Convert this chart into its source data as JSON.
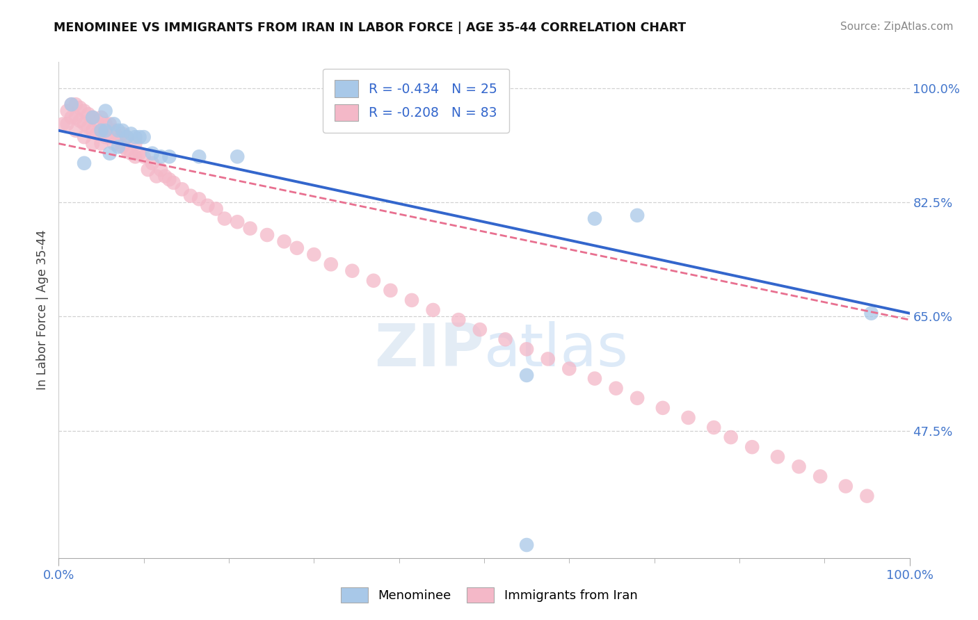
{
  "title": "MENOMINEE VS IMMIGRANTS FROM IRAN IN LABOR FORCE | AGE 35-44 CORRELATION CHART",
  "source": "Source: ZipAtlas.com",
  "ylabel": "In Labor Force | Age 35-44",
  "legend_labels": [
    "Menominee",
    "Immigrants from Iran"
  ],
  "blue_R": -0.434,
  "blue_N": 25,
  "pink_R": -0.208,
  "pink_N": 83,
  "blue_color": "#a8c8e8",
  "pink_color": "#f4b8c8",
  "blue_line_color": "#3366cc",
  "pink_line_color": "#e87090",
  "xlim": [
    0.0,
    1.0
  ],
  "ylim": [
    0.28,
    1.04
  ],
  "yticks": [
    1.0,
    0.825,
    0.65,
    0.475
  ],
  "ytick_labels": [
    "100.0%",
    "82.5%",
    "65.0%",
    "47.5%"
  ],
  "xtick_labels": [
    "0.0%",
    "100.0%"
  ],
  "blue_line_x0": 0.0,
  "blue_line_y0": 0.935,
  "blue_line_x1": 1.0,
  "blue_line_y1": 0.655,
  "pink_line_x0": 0.0,
  "pink_line_y0": 0.915,
  "pink_line_x1": 1.0,
  "pink_line_y1": 0.645,
  "blue_scatter_x": [
    0.015,
    0.03,
    0.04,
    0.05,
    0.055,
    0.055,
    0.06,
    0.065,
    0.07,
    0.07,
    0.075,
    0.08,
    0.085,
    0.09,
    0.095,
    0.1,
    0.11,
    0.12,
    0.13,
    0.165,
    0.21,
    0.55,
    0.63,
    0.68,
    0.955
  ],
  "blue_scatter_y": [
    0.975,
    0.885,
    0.955,
    0.935,
    0.965,
    0.935,
    0.9,
    0.945,
    0.935,
    0.91,
    0.935,
    0.925,
    0.93,
    0.925,
    0.925,
    0.925,
    0.9,
    0.895,
    0.895,
    0.895,
    0.895,
    0.56,
    0.8,
    0.805,
    0.655
  ],
  "pink_scatter_x": [
    0.005,
    0.01,
    0.01,
    0.015,
    0.015,
    0.02,
    0.02,
    0.02,
    0.025,
    0.025,
    0.03,
    0.03,
    0.03,
    0.035,
    0.035,
    0.04,
    0.04,
    0.04,
    0.045,
    0.045,
    0.05,
    0.05,
    0.05,
    0.055,
    0.055,
    0.06,
    0.06,
    0.065,
    0.065,
    0.07,
    0.075,
    0.075,
    0.08,
    0.08,
    0.085,
    0.09,
    0.09,
    0.095,
    0.1,
    0.105,
    0.11,
    0.115,
    0.12,
    0.125,
    0.13,
    0.135,
    0.145,
    0.155,
    0.165,
    0.175,
    0.185,
    0.195,
    0.21,
    0.225,
    0.245,
    0.265,
    0.28,
    0.3,
    0.32,
    0.345,
    0.37,
    0.39,
    0.415,
    0.44,
    0.47,
    0.495,
    0.525,
    0.55,
    0.575,
    0.6,
    0.63,
    0.655,
    0.68,
    0.71,
    0.74,
    0.77,
    0.79,
    0.815,
    0.845,
    0.87,
    0.895,
    0.925,
    0.95
  ],
  "pink_scatter_y": [
    0.945,
    0.965,
    0.945,
    0.975,
    0.955,
    0.975,
    0.955,
    0.935,
    0.97,
    0.95,
    0.965,
    0.945,
    0.925,
    0.96,
    0.94,
    0.955,
    0.935,
    0.915,
    0.95,
    0.93,
    0.955,
    0.935,
    0.915,
    0.945,
    0.925,
    0.945,
    0.925,
    0.935,
    0.915,
    0.925,
    0.93,
    0.91,
    0.925,
    0.905,
    0.9,
    0.915,
    0.895,
    0.9,
    0.895,
    0.875,
    0.885,
    0.865,
    0.875,
    0.865,
    0.86,
    0.855,
    0.845,
    0.835,
    0.83,
    0.82,
    0.815,
    0.8,
    0.795,
    0.785,
    0.775,
    0.765,
    0.755,
    0.745,
    0.73,
    0.72,
    0.705,
    0.69,
    0.675,
    0.66,
    0.645,
    0.63,
    0.615,
    0.6,
    0.585,
    0.57,
    0.555,
    0.54,
    0.525,
    0.51,
    0.495,
    0.48,
    0.465,
    0.45,
    0.435,
    0.42,
    0.405,
    0.39,
    0.375
  ],
  "extra_blue_x": [
    0.55
  ],
  "extra_blue_y": [
    0.3
  ]
}
